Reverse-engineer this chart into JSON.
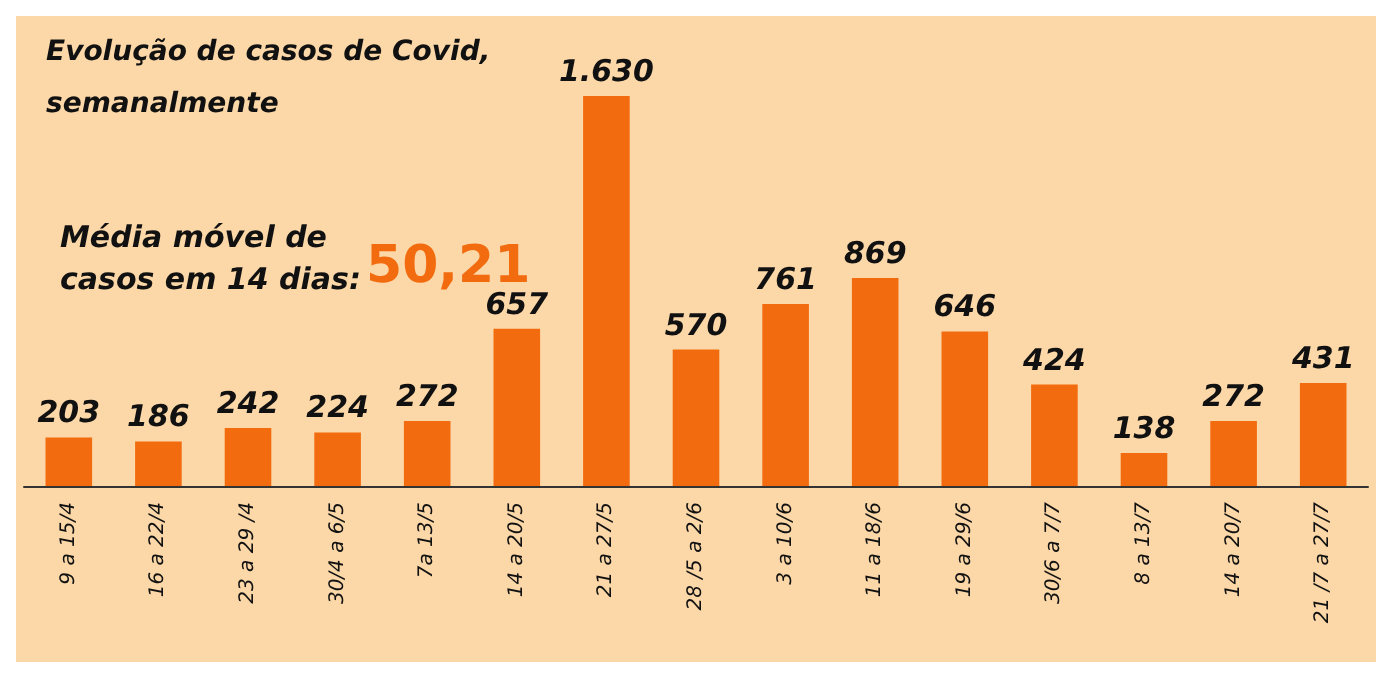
{
  "chart_data": {
    "type": "bar",
    "title": "Evolução de casos de Covid,\nsemanalmente",
    "categories": [
      "9 a 15/4",
      "16 a 22/4",
      "23 a 29 /4",
      "30/4 a 6/5",
      "7a 13/5",
      "14 a 20/5",
      "21 a 27/5",
      "28 /5 a 2/6",
      "3 a 10/6",
      "11 a 18/6",
      "19 a 29/6",
      "30/6 a 7/7",
      "8 a 13/7",
      "14 a 20/7",
      "21 /7 a 27/7"
    ],
    "values": [
      203,
      186,
      242,
      224,
      272,
      657,
      1630,
      570,
      761,
      869,
      646,
      424,
      138,
      272,
      431
    ],
    "value_labels": [
      "203",
      "186",
      "242",
      "224",
      "272",
      "657",
      "1.630",
      "570",
      "761",
      "869",
      "646",
      "424",
      "138",
      "272",
      "431"
    ],
    "color": "#f26b0f",
    "annotations": [
      "Média móvel de\ncasos em 14 dias:",
      "50,21"
    ],
    "grid": false
  }
}
